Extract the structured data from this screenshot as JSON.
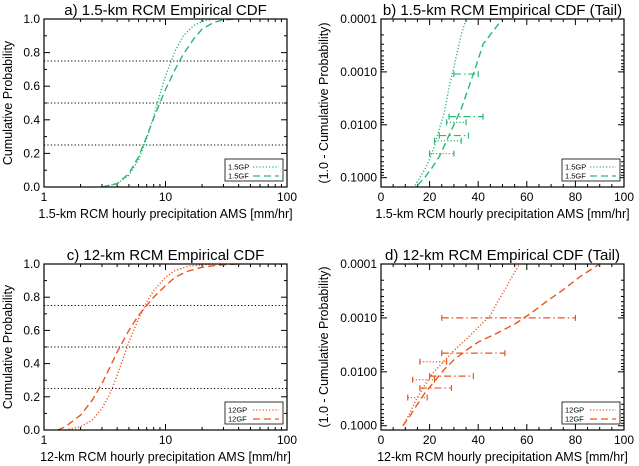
{
  "colors": {
    "green": "#2bb673",
    "orange": "#e8571f",
    "axis": "#000000",
    "ref": "#000000"
  },
  "chart_data": [
    {
      "type": "line",
      "title": "a) 1.5-km RCM Empirical CDF",
      "xlabel": "1.5-km RCM hourly precipitation AMS [mm/hr]",
      "ylabel": "Cumulative Probability",
      "xscale": "log",
      "xlim": [
        1,
        100
      ],
      "xticks": [
        {
          "v": 1,
          "label": "1"
        },
        {
          "v": 10,
          "label": "10"
        },
        {
          "v": 100,
          "label": "100"
        }
      ],
      "yscale": "linear",
      "ylim": [
        0,
        1
      ],
      "yticks": [
        {
          "v": 0,
          "label": "0.0"
        },
        {
          "v": 0.2,
          "label": "0.2"
        },
        {
          "v": 0.4,
          "label": "0.4"
        },
        {
          "v": 0.6,
          "label": "0.6"
        },
        {
          "v": 0.8,
          "label": "0.8"
        },
        {
          "v": 1.0,
          "label": "1.0"
        }
      ],
      "reference_lines": [
        0.25,
        0.5,
        0.75
      ],
      "legend_position": "bottom-right",
      "series": [
        {
          "name": "1.5GP",
          "style": "dotted",
          "color": "green",
          "x": [
            3,
            4,
            5,
            6,
            7,
            8,
            9,
            10,
            12,
            14,
            17,
            20,
            25,
            30
          ],
          "y": [
            0.0,
            0.02,
            0.07,
            0.16,
            0.29,
            0.42,
            0.55,
            0.66,
            0.81,
            0.9,
            0.96,
            0.985,
            1.0,
            1.0
          ]
        },
        {
          "name": "1.5GF",
          "style": "dashed",
          "color": "green",
          "x": [
            3,
            4,
            5,
            6,
            7,
            8,
            9,
            10,
            12,
            14,
            17,
            20,
            25,
            30,
            40
          ],
          "y": [
            0.0,
            0.02,
            0.08,
            0.18,
            0.3,
            0.41,
            0.5,
            0.58,
            0.7,
            0.79,
            0.88,
            0.94,
            0.98,
            0.995,
            1.0
          ]
        }
      ]
    },
    {
      "type": "line",
      "title": "b) 1.5-km RCM Empirical CDF (Tail)",
      "xlabel": "1.5-km RCM hourly precipitation AMS [mm/hr]",
      "ylabel": "(1.0 - Cumulative Probability)",
      "xscale": "linear",
      "xlim": [
        0,
        100
      ],
      "xticks": [
        {
          "v": 0,
          "label": "0"
        },
        {
          "v": 20,
          "label": "20"
        },
        {
          "v": 40,
          "label": "40"
        },
        {
          "v": 60,
          "label": "60"
        },
        {
          "v": 80,
          "label": "80"
        },
        {
          "v": 100,
          "label": "100"
        }
      ],
      "yscale": "log-reversed",
      "ylim": [
        0.15,
        0.0001
      ],
      "yticks": [
        {
          "v": 0.0001,
          "label": "0.0001"
        },
        {
          "v": 0.001,
          "label": "0.0010"
        },
        {
          "v": 0.01,
          "label": "0.0100"
        },
        {
          "v": 0.1,
          "label": "0.1000"
        }
      ],
      "legend_position": "bottom-right",
      "series": [
        {
          "name": "1.5GP",
          "style": "dotted",
          "color": "green",
          "x": [
            14,
            16,
            18,
            20,
            22,
            24,
            26,
            28,
            30,
            33,
            35
          ],
          "y": [
            0.14,
            0.1,
            0.07,
            0.045,
            0.025,
            0.012,
            0.006,
            0.002,
            0.0008,
            0.0002,
            0.0001
          ]
        },
        {
          "name": "1.5GF",
          "style": "dashed",
          "color": "green",
          "x": [
            15,
            18,
            21,
            24,
            27,
            30,
            33,
            36,
            39,
            42,
            47,
            50
          ],
          "y": [
            0.14,
            0.1,
            0.065,
            0.04,
            0.02,
            0.01,
            0.005,
            0.002,
            0.0008,
            0.0003,
            0.00015,
            0.0001
          ]
        }
      ],
      "error_bars": [
        {
          "x": 35,
          "y": 0.0011,
          "lo": 30,
          "hi": 40,
          "style": "dashed",
          "color": "green"
        },
        {
          "x": 30,
          "y": 0.009,
          "lo": 27,
          "hi": 35,
          "style": "dotted",
          "color": "green"
        },
        {
          "x": 34,
          "y": 0.007,
          "lo": 28,
          "hi": 42,
          "style": "dashed",
          "color": "green"
        },
        {
          "x": 27,
          "y": 0.02,
          "lo": 22,
          "hi": 33,
          "style": "dotted",
          "color": "green"
        },
        {
          "x": 30,
          "y": 0.016,
          "lo": 24,
          "hi": 36,
          "style": "dashed",
          "color": "green"
        },
        {
          "x": 24,
          "y": 0.035,
          "lo": 20,
          "hi": 30,
          "style": "dotted",
          "color": "green"
        }
      ]
    },
    {
      "type": "line",
      "title": "c) 12-km RCM Empirical CDF",
      "xlabel": "12-km RCM hourly precipitation AMS [mm/hr]",
      "ylabel": "Cumulative Probability",
      "xscale": "log",
      "xlim": [
        1,
        100
      ],
      "xticks": [
        {
          "v": 1,
          "label": "1"
        },
        {
          "v": 10,
          "label": "10"
        },
        {
          "v": 100,
          "label": "100"
        }
      ],
      "yscale": "linear",
      "ylim": [
        0,
        1
      ],
      "yticks": [
        {
          "v": 0,
          "label": "0.0"
        },
        {
          "v": 0.2,
          "label": "0.2"
        },
        {
          "v": 0.4,
          "label": "0.4"
        },
        {
          "v": 0.6,
          "label": "0.6"
        },
        {
          "v": 0.8,
          "label": "0.8"
        },
        {
          "v": 1.0,
          "label": "1.0"
        }
      ],
      "reference_lines": [
        0.25,
        0.5,
        0.75
      ],
      "legend_position": "bottom-right",
      "series": [
        {
          "name": "12GP",
          "style": "dotted",
          "color": "orange",
          "x": [
            1.5,
            2,
            2.5,
            3,
            3.5,
            4,
            5,
            6,
            7,
            8,
            10,
            12,
            15,
            20,
            25,
            30
          ],
          "y": [
            0.0,
            0.02,
            0.06,
            0.13,
            0.22,
            0.33,
            0.53,
            0.67,
            0.77,
            0.84,
            0.92,
            0.96,
            0.985,
            0.995,
            1.0,
            1.0
          ]
        },
        {
          "name": "12GF",
          "style": "dashed",
          "color": "orange",
          "x": [
            1.3,
            1.5,
            2,
            2.5,
            3,
            3.5,
            4,
            5,
            6,
            7,
            8,
            10,
            12,
            15,
            20,
            25,
            30,
            40
          ],
          "y": [
            0.0,
            0.02,
            0.09,
            0.18,
            0.28,
            0.38,
            0.47,
            0.6,
            0.69,
            0.75,
            0.8,
            0.87,
            0.92,
            0.955,
            0.98,
            0.99,
            0.995,
            1.0
          ]
        }
      ]
    },
    {
      "type": "line",
      "title": "d) 12-km RCM Empirical CDF (Tail)",
      "xlabel": "12-km RCM hourly precipitation AMS [mm/hr]",
      "ylabel": "(1.0 - Cumulative Probability)",
      "xscale": "linear",
      "xlim": [
        0,
        100
      ],
      "xticks": [
        {
          "v": 0,
          "label": "0"
        },
        {
          "v": 20,
          "label": "20"
        },
        {
          "v": 40,
          "label": "40"
        },
        {
          "v": 60,
          "label": "60"
        },
        {
          "v": 80,
          "label": "80"
        },
        {
          "v": 100,
          "label": "100"
        }
      ],
      "yscale": "log-reversed",
      "ylim": [
        0.12,
        0.0001
      ],
      "yticks": [
        {
          "v": 0.0001,
          "label": "0.0001"
        },
        {
          "v": 0.001,
          "label": "0.0010"
        },
        {
          "v": 0.01,
          "label": "0.0100"
        },
        {
          "v": 0.1,
          "label": "0.1000"
        }
      ],
      "legend_position": "bottom-right",
      "series": [
        {
          "name": "12GP",
          "style": "dotted",
          "color": "orange",
          "x": [
            9,
            11,
            13,
            15,
            18,
            21,
            25,
            30,
            35,
            40,
            45,
            48,
            51,
            54,
            57
          ],
          "y": [
            0.1,
            0.07,
            0.045,
            0.03,
            0.018,
            0.011,
            0.007,
            0.004,
            0.0025,
            0.0015,
            0.0009,
            0.0005,
            0.0003,
            0.00017,
            0.0001
          ]
        },
        {
          "name": "12GF",
          "style": "dashed",
          "color": "orange",
          "x": [
            9,
            12,
            15,
            18,
            22,
            26,
            30,
            35,
            40,
            47,
            55,
            62,
            68,
            75,
            82,
            90
          ],
          "y": [
            0.1,
            0.065,
            0.04,
            0.025,
            0.015,
            0.009,
            0.006,
            0.004,
            0.0028,
            0.002,
            0.0013,
            0.0008,
            0.0005,
            0.0003,
            0.00017,
            0.0001
          ]
        }
      ],
      "error_bars": [
        {
          "x": 50,
          "y": 0.001,
          "lo": 25,
          "hi": 80,
          "style": "dashed",
          "color": "orange"
        },
        {
          "x": 37,
          "y": 0.0045,
          "lo": 25,
          "hi": 51,
          "style": "dashed",
          "color": "orange"
        },
        {
          "x": 20,
          "y": 0.0065,
          "lo": 16,
          "hi": 27,
          "style": "dotted",
          "color": "orange"
        },
        {
          "x": 28,
          "y": 0.012,
          "lo": 20,
          "hi": 38,
          "style": "dashed",
          "color": "orange"
        },
        {
          "x": 17,
          "y": 0.014,
          "lo": 13,
          "hi": 22,
          "style": "dotted",
          "color": "orange"
        },
        {
          "x": 22,
          "y": 0.02,
          "lo": 16,
          "hi": 29,
          "style": "dashed",
          "color": "orange"
        },
        {
          "x": 14,
          "y": 0.03,
          "lo": 11,
          "hi": 19,
          "style": "dotted",
          "color": "orange"
        }
      ]
    }
  ]
}
